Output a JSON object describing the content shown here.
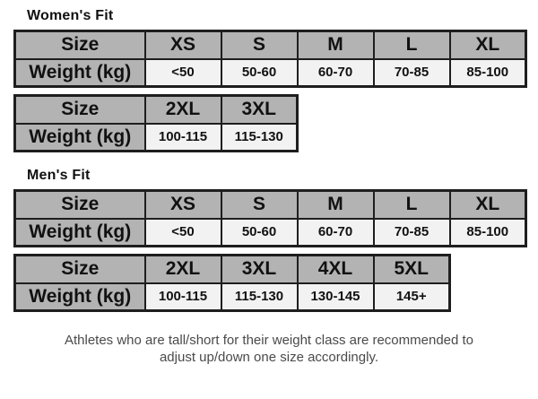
{
  "colors": {
    "header_bg": "#b3b3b3",
    "value_bg": "#f2f2f2",
    "border": "#1e1e1e",
    "footer_text": "#4a4a4a"
  },
  "sections": [
    {
      "title": "Women's Fit",
      "tables": [
        {
          "size_label": "Size",
          "weight_label": "Weight (kg)",
          "sizes": [
            "XS",
            "S",
            "M",
            "L",
            "XL"
          ],
          "weights": [
            "<50",
            "50-60",
            "60-70",
            "70-85",
            "85-100"
          ]
        },
        {
          "size_label": "Size",
          "weight_label": "Weight (kg)",
          "sizes": [
            "2XL",
            "3XL"
          ],
          "weights": [
            "100-115",
            "115-130"
          ]
        }
      ]
    },
    {
      "title": "Men's Fit",
      "tables": [
        {
          "size_label": "Size",
          "weight_label": "Weight (kg)",
          "sizes": [
            "XS",
            "S",
            "M",
            "L",
            "XL"
          ],
          "weights": [
            "<50",
            "50-60",
            "60-70",
            "70-85",
            "85-100"
          ]
        },
        {
          "size_label": "Size",
          "weight_label": "Weight (kg)",
          "sizes": [
            "2XL",
            "3XL",
            "4XL",
            "5XL"
          ],
          "weights": [
            "100-115",
            "115-130",
            "130-145",
            "145+"
          ]
        }
      ]
    }
  ],
  "footer": {
    "line1": "Athletes who are tall/short for their weight class are recommended to",
    "line2": "adjust up/down one size accordingly."
  }
}
